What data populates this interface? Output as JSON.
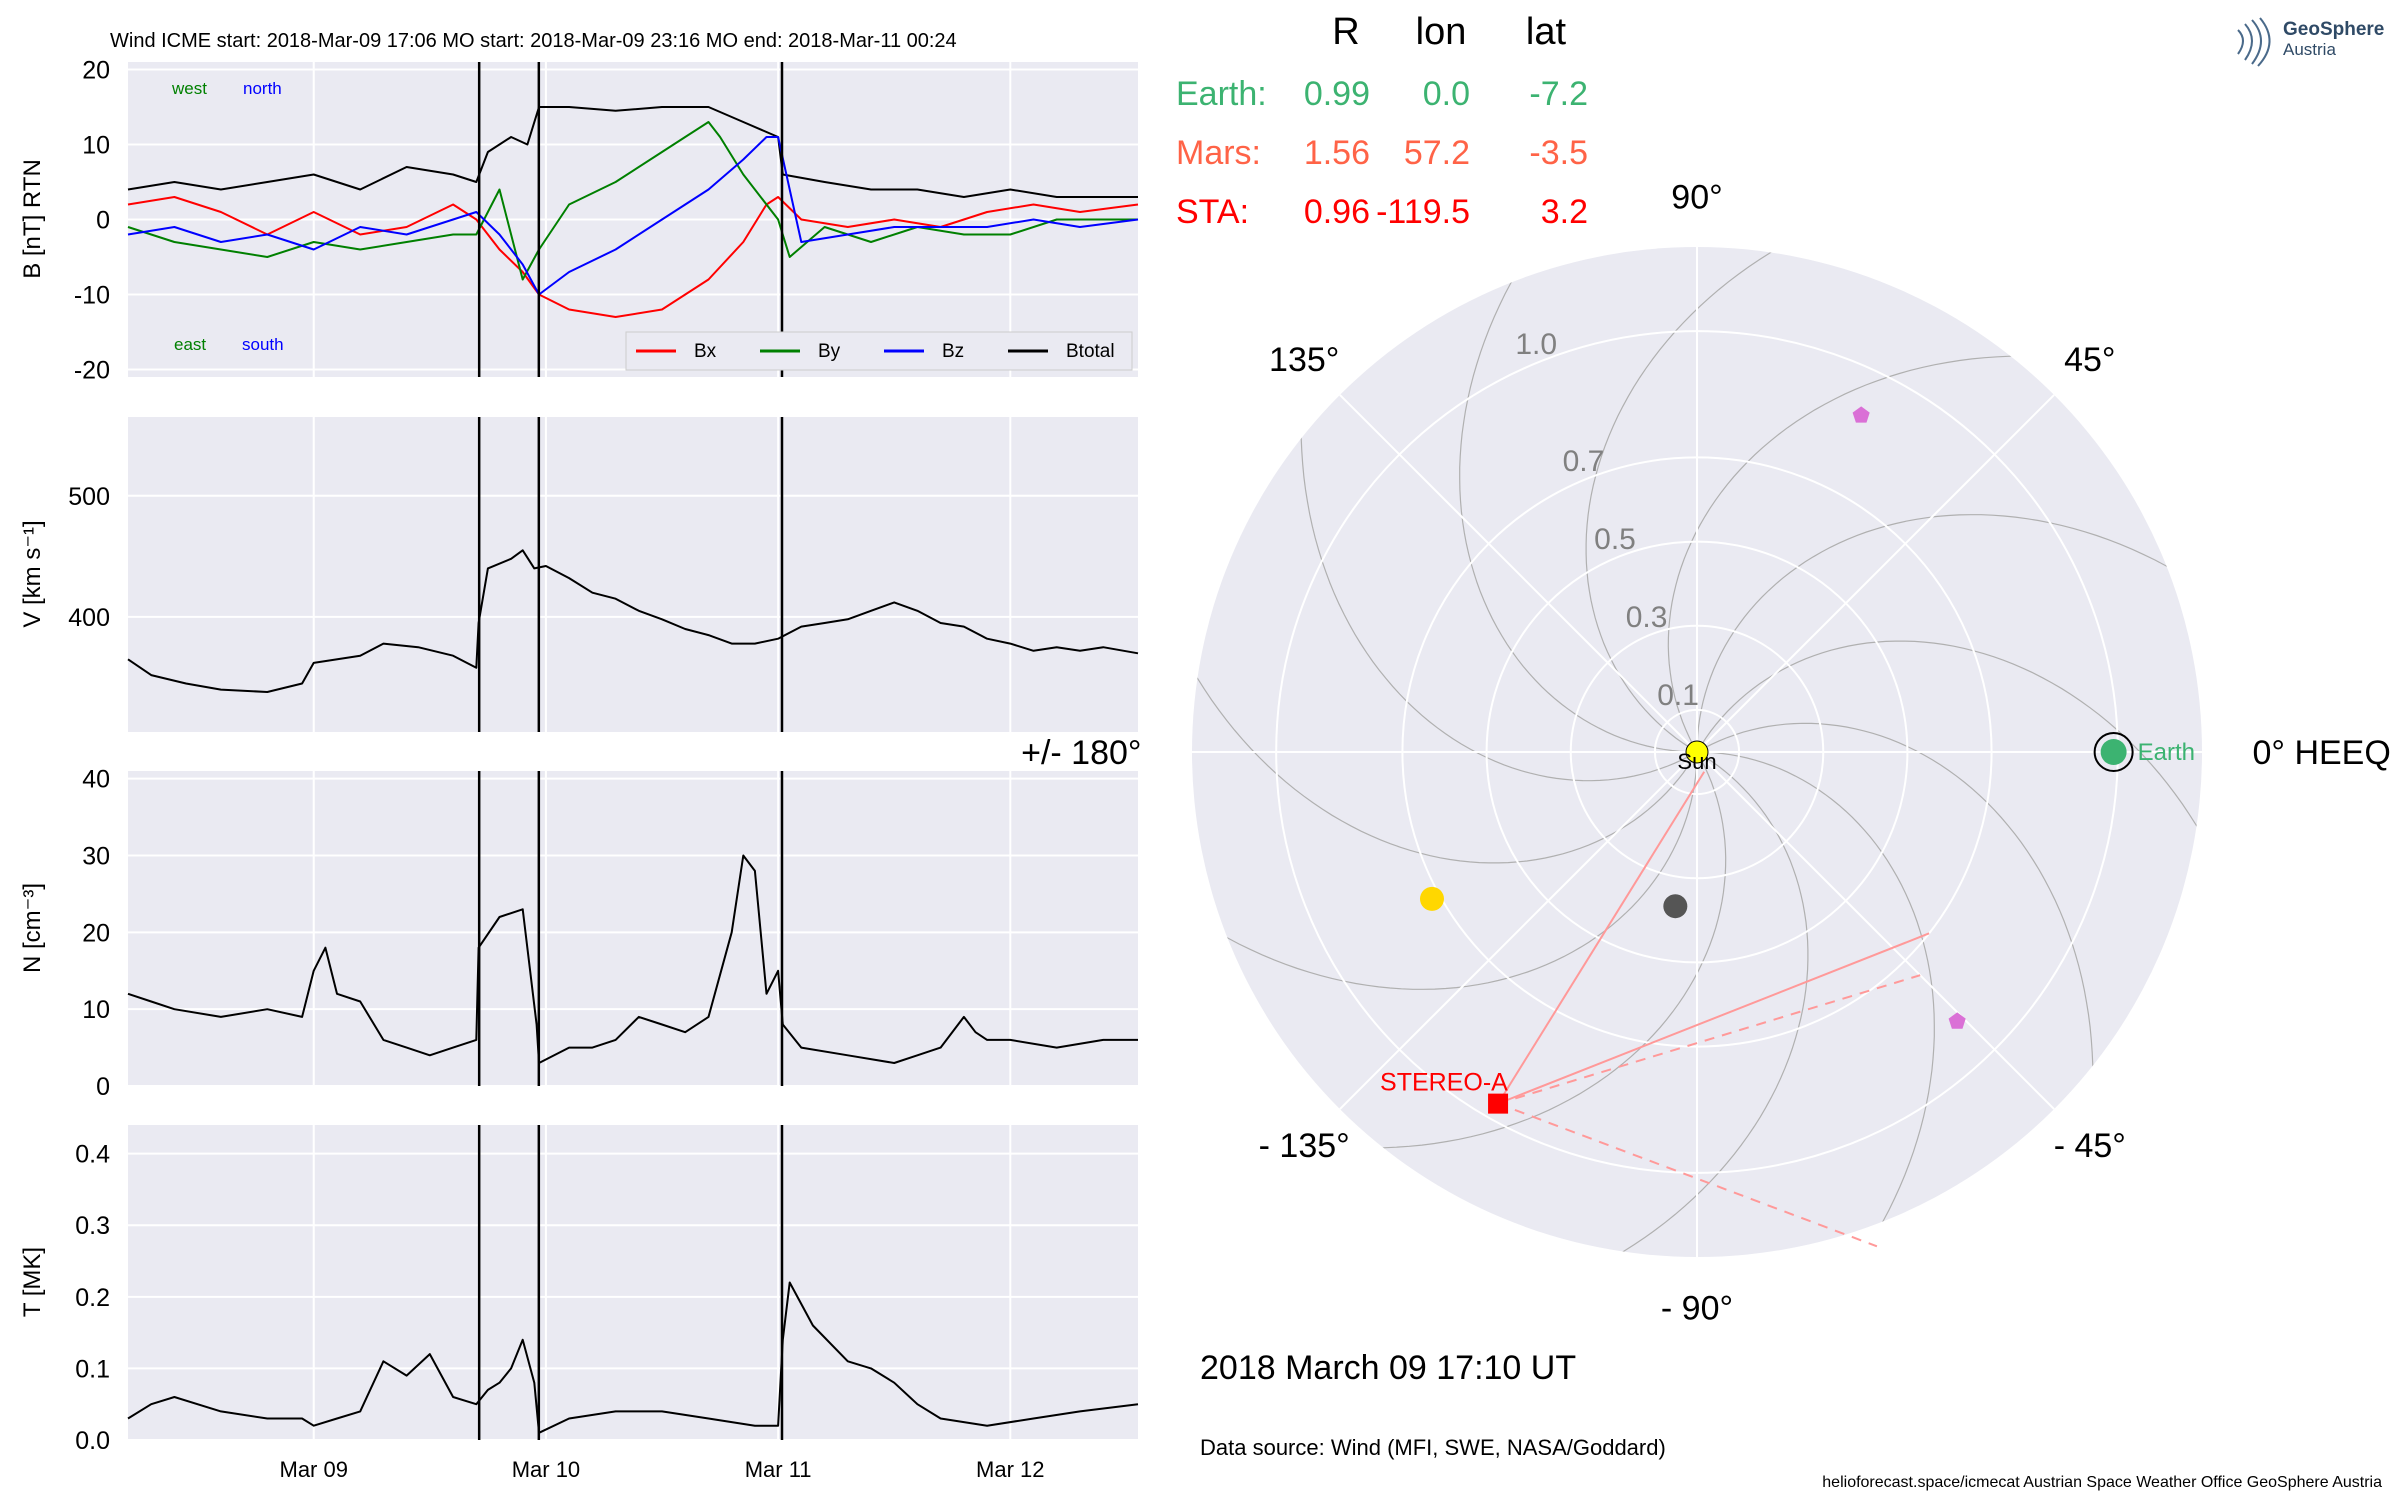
{
  "colors": {
    "panel_bg": "#eaeaf2",
    "grid": "#ffffff",
    "bx": "#ff0000",
    "by": "#008000",
    "bz": "#0000ff",
    "btotal": "#000000",
    "earth": "#3cb371",
    "mars": "#ff6347",
    "sta": "#ff0000",
    "sun": "#ffff00",
    "venus": "#ffd700",
    "mercury": "#555555",
    "psp_marker": "#da70d6",
    "boundary": "#000000",
    "polar_tick": "#808080",
    "sta_line": "#ff9999"
  },
  "insitu": {
    "header": "Wind    ICME start: 2018-Mar-09 17:06   MO start: 2018-Mar-09 23:16   MO end: 2018-Mar-11 00:24",
    "labels": {
      "west": "west",
      "north": "north",
      "east": "east",
      "south": "south"
    },
    "legend": [
      "Bx",
      "By",
      "Bz",
      "Btotal"
    ],
    "x_ticks": [
      "Mar 09",
      "Mar 10",
      "Mar 11",
      "Mar 12"
    ]
  },
  "chart_data": [
    {
      "type": "line",
      "ylabel": "B [nT] RTN",
      "ylim": [
        -21,
        21
      ],
      "yticks": [
        20,
        10,
        0,
        -10,
        -20
      ],
      "xlim_days": [
        8.2,
        12.55
      ],
      "boundaries_days": [
        9.7125,
        9.9694,
        11.0167
      ],
      "series": [
        {
          "name": "Btotal",
          "points": [
            [
              8.2,
              4
            ],
            [
              8.4,
              5
            ],
            [
              8.6,
              4
            ],
            [
              8.8,
              5
            ],
            [
              9.0,
              6
            ],
            [
              9.2,
              4
            ],
            [
              9.4,
              7
            ],
            [
              9.6,
              6
            ],
            [
              9.7,
              5
            ],
            [
              9.75,
              9
            ],
            [
              9.85,
              11
            ],
            [
              9.92,
              10
            ],
            [
              9.97,
              15
            ],
            [
              10.1,
              15
            ],
            [
              10.3,
              14.5
            ],
            [
              10.5,
              15
            ],
            [
              10.7,
              15
            ],
            [
              10.85,
              13
            ],
            [
              11.0,
              11
            ],
            [
              11.02,
              6
            ],
            [
              11.2,
              5
            ],
            [
              11.4,
              4
            ],
            [
              11.6,
              4
            ],
            [
              11.8,
              3
            ],
            [
              12.0,
              4
            ],
            [
              12.2,
              3
            ],
            [
              12.55,
              3
            ]
          ]
        },
        {
          "name": "Bx",
          "points": [
            [
              8.2,
              2
            ],
            [
              8.4,
              3
            ],
            [
              8.6,
              1
            ],
            [
              8.8,
              -2
            ],
            [
              9.0,
              1
            ],
            [
              9.2,
              -2
            ],
            [
              9.4,
              -1
            ],
            [
              9.6,
              2
            ],
            [
              9.7,
              0
            ],
            [
              9.8,
              -4
            ],
            [
              9.9,
              -7
            ],
            [
              9.97,
              -10
            ],
            [
              10.1,
              -12
            ],
            [
              10.3,
              -13
            ],
            [
              10.5,
              -12
            ],
            [
              10.7,
              -8
            ],
            [
              10.85,
              -3
            ],
            [
              10.95,
              2
            ],
            [
              11.0,
              3
            ],
            [
              11.1,
              0
            ],
            [
              11.3,
              -1
            ],
            [
              11.5,
              0
            ],
            [
              11.7,
              -1
            ],
            [
              11.9,
              1
            ],
            [
              12.1,
              2
            ],
            [
              12.3,
              1
            ],
            [
              12.55,
              2
            ]
          ]
        },
        {
          "name": "By",
          "points": [
            [
              8.2,
              -1
            ],
            [
              8.4,
              -3
            ],
            [
              8.6,
              -4
            ],
            [
              8.8,
              -5
            ],
            [
              9.0,
              -3
            ],
            [
              9.2,
              -4
            ],
            [
              9.4,
              -3
            ],
            [
              9.6,
              -2
            ],
            [
              9.7,
              -2
            ],
            [
              9.8,
              4
            ],
            [
              9.9,
              -8
            ],
            [
              9.97,
              -4
            ],
            [
              10.1,
              2
            ],
            [
              10.3,
              5
            ],
            [
              10.5,
              9
            ],
            [
              10.6,
              11
            ],
            [
              10.7,
              13
            ],
            [
              10.75,
              11
            ],
            [
              10.85,
              6
            ],
            [
              11.0,
              0
            ],
            [
              11.05,
              -5
            ],
            [
              11.2,
              -1
            ],
            [
              11.4,
              -3
            ],
            [
              11.6,
              -1
            ],
            [
              11.8,
              -2
            ],
            [
              12.0,
              -2
            ],
            [
              12.2,
              0
            ],
            [
              12.55,
              0
            ]
          ]
        },
        {
          "name": "Bz",
          "points": [
            [
              8.2,
              -2
            ],
            [
              8.4,
              -1
            ],
            [
              8.6,
              -3
            ],
            [
              8.8,
              -2
            ],
            [
              9.0,
              -4
            ],
            [
              9.2,
              -1
            ],
            [
              9.4,
              -2
            ],
            [
              9.6,
              0
            ],
            [
              9.7,
              1
            ],
            [
              9.8,
              -2
            ],
            [
              9.9,
              -6
            ],
            [
              9.97,
              -10
            ],
            [
              10.1,
              -7
            ],
            [
              10.3,
              -4
            ],
            [
              10.5,
              0
            ],
            [
              10.7,
              4
            ],
            [
              10.85,
              8
            ],
            [
              10.95,
              11
            ],
            [
              11.0,
              11
            ],
            [
              11.1,
              -3
            ],
            [
              11.3,
              -2
            ],
            [
              11.5,
              -1
            ],
            [
              11.7,
              -1
            ],
            [
              11.9,
              -1
            ],
            [
              12.1,
              0
            ],
            [
              12.3,
              -1
            ],
            [
              12.55,
              0
            ]
          ]
        }
      ]
    },
    {
      "type": "line",
      "ylabel": "V [km s⁻¹]",
      "ylim": [
        305,
        565
      ],
      "yticks": [
        500,
        400
      ],
      "series": [
        {
          "name": "V",
          "points": [
            [
              8.2,
              365
            ],
            [
              8.3,
              352
            ],
            [
              8.45,
              345
            ],
            [
              8.6,
              340
            ],
            [
              8.8,
              338
            ],
            [
              8.95,
              345
            ],
            [
              9.0,
              362
            ],
            [
              9.2,
              368
            ],
            [
              9.3,
              378
            ],
            [
              9.45,
              375
            ],
            [
              9.6,
              368
            ],
            [
              9.7,
              358
            ],
            [
              9.71,
              395
            ],
            [
              9.75,
              440
            ],
            [
              9.85,
              448
            ],
            [
              9.9,
              455
            ],
            [
              9.95,
              440
            ],
            [
              10.0,
              442
            ],
            [
              10.1,
              432
            ],
            [
              10.2,
              420
            ],
            [
              10.3,
              415
            ],
            [
              10.4,
              405
            ],
            [
              10.5,
              398
            ],
            [
              10.6,
              390
            ],
            [
              10.7,
              385
            ],
            [
              10.8,
              378
            ],
            [
              10.9,
              378
            ],
            [
              11.0,
              382
            ],
            [
              11.1,
              392
            ],
            [
              11.2,
              395
            ],
            [
              11.3,
              398
            ],
            [
              11.4,
              405
            ],
            [
              11.5,
              412
            ],
            [
              11.6,
              405
            ],
            [
              11.7,
              395
            ],
            [
              11.8,
              392
            ],
            [
              11.9,
              382
            ],
            [
              12.0,
              378
            ],
            [
              12.1,
              372
            ],
            [
              12.2,
              375
            ],
            [
              12.3,
              372
            ],
            [
              12.4,
              375
            ],
            [
              12.55,
              370
            ]
          ]
        }
      ]
    },
    {
      "type": "line",
      "ylabel": "N [cm⁻³]",
      "ylim": [
        0,
        41
      ],
      "yticks": [
        40,
        30,
        20,
        10,
        0
      ],
      "series": [
        {
          "name": "N",
          "points": [
            [
              8.2,
              12
            ],
            [
              8.3,
              11
            ],
            [
              8.4,
              10
            ],
            [
              8.6,
              9
            ],
            [
              8.8,
              10
            ],
            [
              8.95,
              9
            ],
            [
              9.0,
              15
            ],
            [
              9.05,
              18
            ],
            [
              9.1,
              12
            ],
            [
              9.2,
              11
            ],
            [
              9.3,
              6
            ],
            [
              9.4,
              5
            ],
            [
              9.5,
              4
            ],
            [
              9.6,
              5
            ],
            [
              9.7,
              6
            ],
            [
              9.71,
              18
            ],
            [
              9.8,
              22
            ],
            [
              9.9,
              23
            ],
            [
              9.96,
              8
            ],
            [
              9.97,
              3
            ],
            [
              10.1,
              5
            ],
            [
              10.2,
              5
            ],
            [
              10.3,
              6
            ],
            [
              10.4,
              9
            ],
            [
              10.5,
              8
            ],
            [
              10.6,
              7
            ],
            [
              10.7,
              9
            ],
            [
              10.8,
              20
            ],
            [
              10.85,
              30
            ],
            [
              10.9,
              28
            ],
            [
              10.95,
              12
            ],
            [
              11.0,
              15
            ],
            [
              11.02,
              8
            ],
            [
              11.1,
              5
            ],
            [
              11.3,
              4
            ],
            [
              11.5,
              3
            ],
            [
              11.6,
              4
            ],
            [
              11.7,
              5
            ],
            [
              11.8,
              9
            ],
            [
              11.85,
              7
            ],
            [
              11.9,
              6
            ],
            [
              12.0,
              6
            ],
            [
              12.2,
              5
            ],
            [
              12.4,
              6
            ],
            [
              12.55,
              6
            ]
          ]
        }
      ]
    },
    {
      "type": "line",
      "ylabel": "T [MK]",
      "ylim": [
        0,
        0.44
      ],
      "yticks": [
        0.4,
        0.3,
        0.2,
        0.1,
        0.0
      ],
      "series": [
        {
          "name": "T",
          "points": [
            [
              8.2,
              0.03
            ],
            [
              8.3,
              0.05
            ],
            [
              8.4,
              0.06
            ],
            [
              8.6,
              0.04
            ],
            [
              8.8,
              0.03
            ],
            [
              8.95,
              0.03
            ],
            [
              9.0,
              0.02
            ],
            [
              9.1,
              0.03
            ],
            [
              9.2,
              0.04
            ],
            [
              9.3,
              0.11
            ],
            [
              9.4,
              0.09
            ],
            [
              9.5,
              0.12
            ],
            [
              9.6,
              0.06
            ],
            [
              9.7,
              0.05
            ],
            [
              9.75,
              0.07
            ],
            [
              9.8,
              0.08
            ],
            [
              9.85,
              0.1
            ],
            [
              9.9,
              0.14
            ],
            [
              9.95,
              0.08
            ],
            [
              9.97,
              0.01
            ],
            [
              10.1,
              0.03
            ],
            [
              10.3,
              0.04
            ],
            [
              10.5,
              0.04
            ],
            [
              10.7,
              0.03
            ],
            [
              10.9,
              0.02
            ],
            [
              11.0,
              0.02
            ],
            [
              11.02,
              0.14
            ],
            [
              11.05,
              0.22
            ],
            [
              11.15,
              0.16
            ],
            [
              11.3,
              0.11
            ],
            [
              11.4,
              0.1
            ],
            [
              11.5,
              0.08
            ],
            [
              11.6,
              0.05
            ],
            [
              11.7,
              0.03
            ],
            [
              11.9,
              0.02
            ],
            [
              12.1,
              0.03
            ],
            [
              12.3,
              0.04
            ],
            [
              12.55,
              0.05
            ]
          ]
        }
      ]
    }
  ],
  "position_table": {
    "headers": [
      "R",
      "lon",
      "lat"
    ],
    "rows": [
      {
        "name": "Earth:",
        "R": "0.99",
        "lon": "0.0",
        "lat": "-7.2",
        "color_key": "earth"
      },
      {
        "name": "Mars:",
        "R": "1.56",
        "lon": "57.2",
        "lat": "-3.5",
        "color_key": "mars"
      },
      {
        "name": "STA:",
        "R": "0.96",
        "lon": "-119.5",
        "lat": "3.2",
        "color_key": "sta"
      }
    ]
  },
  "polar": {
    "angle_labels": {
      "deg90": "90°",
      "deg45": "45°",
      "deg0": "0° HEEQ",
      "degm45": "- 45°",
      "degm90": "- 90°",
      "degm135": "- 135°",
      "deg180": "+/- 180°",
      "deg135": "135°"
    },
    "radial_labels": [
      "0.1",
      "0.3",
      "0.5",
      "0.7",
      "1.0"
    ],
    "r_max": 1.2,
    "bodies": [
      {
        "name": "Sun",
        "r": 0.0,
        "lon": 0,
        "color_key": "sun"
      },
      {
        "name": "Earth",
        "r": 0.99,
        "lon": 0.0,
        "color_key": "earth"
      },
      {
        "name": "STEREO-A",
        "r": 0.96,
        "lon": -119.5,
        "color_key": "sta"
      },
      {
        "name": "Venus",
        "r": 0.72,
        "lon": -151,
        "color_key": "venus"
      },
      {
        "name": "Mercury",
        "r": 0.37,
        "lon": -98,
        "color_key": "mercury"
      },
      {
        "name": "PSP",
        "r": 0.89,
        "lon": 64,
        "color_key": "psp_marker"
      },
      {
        "name": "SolO",
        "r": 0.89,
        "lon": -46,
        "color_key": "psp_marker"
      }
    ],
    "sun_label": "Sun",
    "earth_label": "Earth",
    "sta_label": "STEREO-A"
  },
  "footer": {
    "datetime": "2018 March 09  17:10 UT",
    "source": "Data source: Wind (MFI, SWE, NASA/Goddard)",
    "credit": "helioforecast.space/icmecat   Austrian Space Weather Office   GeoSphere Austria"
  },
  "logo": {
    "line1": "GeoSphere",
    "line2": "Austria"
  }
}
